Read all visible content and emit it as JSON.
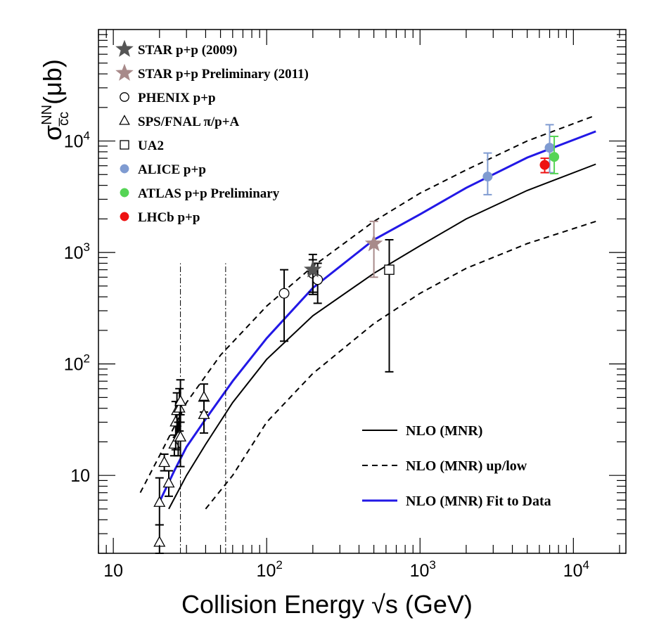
{
  "chart_data": {
    "type": "scatter",
    "title": "",
    "xlabel": "Collision Energy  √s (GeV)",
    "ylabel": "σ",
    "ylabel_sup": "NN",
    "ylabel_sub": "c̅c",
    "ylabel_unit": "(μb)",
    "xscale": "log",
    "yscale": "log",
    "xlim": [
      8,
      22000
    ],
    "ylim": [
      2,
      100000
    ],
    "grid": false,
    "x_ticks": [
      {
        "value": 10,
        "base": "10",
        "exp": ""
      },
      {
        "value": 100,
        "base": "10",
        "exp": "2"
      },
      {
        "value": 1000,
        "base": "10",
        "exp": "3"
      },
      {
        "value": 10000,
        "base": "10",
        "exp": "4"
      }
    ],
    "y_ticks": [
      {
        "value": 10,
        "base": "10",
        "exp": ""
      },
      {
        "value": 100,
        "base": "10",
        "exp": "2"
      },
      {
        "value": 1000,
        "base": "10",
        "exp": "3"
      },
      {
        "value": 10000,
        "base": "10",
        "exp": "4"
      }
    ],
    "legend_placement": "top-left",
    "series": [
      {
        "name": "STAR p+p (2009)",
        "marker": "star",
        "filled": true,
        "color": "#555555",
        "points": [
          {
            "x": 200,
            "y": 700,
            "ylo": 420,
            "yhi": 960
          }
        ]
      },
      {
        "name": "STAR p+p Preliminary (2011)",
        "marker": "star",
        "filled": true,
        "color": "#a88a8a",
        "points": [
          {
            "x": 500,
            "y": 1200,
            "ylo": 600,
            "yhi": 1900
          }
        ]
      },
      {
        "name": "PHENIX p+p",
        "marker": "circle",
        "filled": false,
        "color": "#000000",
        "points": [
          {
            "x": 130,
            "y": 430,
            "ylo": 160,
            "yhi": 700
          },
          {
            "x": 200,
            "y": 650,
            "ylo": 440,
            "yhi": 860
          },
          {
            "x": 215,
            "y": 570,
            "ylo": 350,
            "yhi": 800
          }
        ]
      },
      {
        "name": "SPS/FNAL  π/p+A",
        "marker": "triangle",
        "filled": false,
        "color": "#000000",
        "points": [
          {
            "x": 20,
            "y": 5.7,
            "ylo": 3.6,
            "yhi": 9.5
          },
          {
            "x": 20,
            "y": 2.5,
            "ylo": 2,
            "yhi": 3.6
          },
          {
            "x": 21.5,
            "y": 13,
            "ylo": 11,
            "yhi": 15.5
          },
          {
            "x": 23,
            "y": 8.5,
            "ylo": 6.5,
            "yhi": 11
          },
          {
            "x": 25,
            "y": 19,
            "ylo": 15,
            "yhi": 23
          },
          {
            "x": 25.5,
            "y": 30,
            "ylo": 17,
            "yhi": 46
          },
          {
            "x": 26,
            "y": 38,
            "ylo": 22,
            "yhi": 55
          },
          {
            "x": 26.5,
            "y": 22,
            "ylo": 15,
            "yhi": 30
          },
          {
            "x": 27,
            "y": 40,
            "ylo": 25,
            "yhi": 60
          },
          {
            "x": 27.4,
            "y": 46,
            "ylo": 30,
            "yhi": 72
          },
          {
            "x": 27.4,
            "y": 22,
            "ylo": 12,
            "yhi": 35
          },
          {
            "x": 39,
            "y": 50,
            "ylo": 37,
            "yhi": 66
          },
          {
            "x": 39,
            "y": 35,
            "ylo": 24,
            "yhi": 47
          }
        ]
      },
      {
        "name": "UA2",
        "marker": "square",
        "filled": false,
        "color": "#000000",
        "points": [
          {
            "x": 630,
            "y": 700,
            "ylo": 85,
            "yhi": 1300
          }
        ]
      },
      {
        "name": "ALICE p+p",
        "marker": "circle",
        "filled": true,
        "color": "#7f9bd1",
        "points": [
          {
            "x": 2760,
            "y": 4800,
            "ylo": 3300,
            "yhi": 7800
          },
          {
            "x": 7000,
            "y": 8700,
            "ylo": 5200,
            "yhi": 14000
          }
        ]
      },
      {
        "name": "ATLAS p+p Preliminary",
        "marker": "circle",
        "filled": true,
        "color": "#55d455",
        "points": [
          {
            "x": 7500,
            "y": 7200,
            "ylo": 5100,
            "yhi": 11000
          }
        ]
      },
      {
        "name": "LHCb p+p",
        "marker": "circle",
        "filled": true,
        "color": "#ee1111",
        "points": [
          {
            "x": 6500,
            "y": 6100,
            "ylo": 5200,
            "yhi": 7000
          }
        ]
      }
    ],
    "curves": [
      {
        "name": "NLO (MNR)",
        "style": "solid",
        "color": "#000000",
        "x": [
          23,
          30,
          40,
          60,
          100,
          200,
          500,
          1000,
          2000,
          5000,
          14000
        ],
        "y": [
          5,
          10,
          19,
          45,
          110,
          270,
          650,
          1150,
          2000,
          3600,
          6200
        ]
      },
      {
        "name": "NLO (MNR) up/low",
        "style": "dashed",
        "color": "#000000",
        "x": [
          15,
          20,
          30,
          50,
          100,
          200,
          500,
          1000,
          2000,
          5000,
          14000
        ],
        "y": [
          7,
          15,
          45,
          120,
          330,
          750,
          1900,
          3400,
          5500,
          10000,
          17000
        ]
      },
      {
        "name": "",
        "style": "dashed",
        "color": "#000000",
        "x": [
          40,
          60,
          100,
          200,
          500,
          1000,
          2000,
          5000,
          14000
        ],
        "y": [
          5,
          10,
          30,
          82,
          230,
          430,
          720,
          1200,
          1900
        ]
      },
      {
        "name": "NLO (MNR) Fit to Data",
        "style": "solid",
        "color": "#2218e6",
        "x": [
          20,
          25,
          30,
          40,
          60,
          100,
          200,
          500,
          1000,
          2000,
          5000,
          14000
        ],
        "y": [
          5.8,
          11,
          18,
          32,
          70,
          170,
          480,
          1300,
          2200,
          3800,
          7100,
          12200
        ]
      }
    ],
    "vertical_lines": [
      {
        "x": 27.4,
        "ymin": 2,
        "ymax": 800,
        "style": "dash-dot"
      },
      {
        "x": 54,
        "ymin": 2,
        "ymax": 800,
        "style": "dash-dot"
      }
    ]
  }
}
